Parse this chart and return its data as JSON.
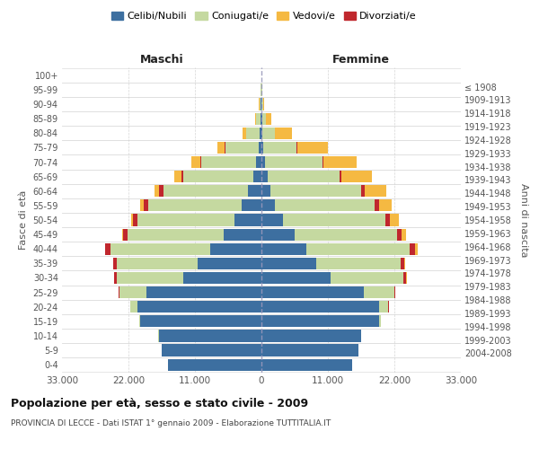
{
  "age_groups": [
    "0-4",
    "5-9",
    "10-14",
    "15-19",
    "20-24",
    "25-29",
    "30-34",
    "35-39",
    "40-44",
    "45-49",
    "50-54",
    "55-59",
    "60-64",
    "65-69",
    "70-74",
    "75-79",
    "80-84",
    "85-89",
    "90-94",
    "95-99",
    "100+"
  ],
  "birth_years": [
    "2004-2008",
    "1999-2003",
    "1994-1998",
    "1989-1993",
    "1984-1988",
    "1979-1983",
    "1974-1978",
    "1969-1973",
    "1964-1968",
    "1959-1963",
    "1954-1958",
    "1949-1953",
    "1944-1948",
    "1939-1943",
    "1934-1938",
    "1929-1933",
    "1924-1928",
    "1919-1923",
    "1914-1918",
    "1909-1913",
    "≤ 1908"
  ],
  "colors": {
    "celibi": "#3d6fa0",
    "coniugati": "#c5d9a0",
    "vedovi": "#f5b942",
    "divorziati": "#c0272d"
  },
  "maschi": {
    "celibi": [
      15500,
      16500,
      17000,
      20000,
      20500,
      19000,
      13000,
      10500,
      8500,
      6200,
      4500,
      3200,
      2200,
      1400,
      900,
      500,
      300,
      150,
      100,
      50,
      20
    ],
    "coniugati": [
      2,
      5,
      30,
      200,
      1200,
      4500,
      11000,
      13500,
      16500,
      16000,
      16000,
      15500,
      14000,
      11500,
      9000,
      5500,
      2200,
      700,
      250,
      80,
      30
    ],
    "vedovi": [
      0,
      0,
      0,
      0,
      2,
      5,
      20,
      50,
      100,
      150,
      300,
      500,
      800,
      1200,
      1500,
      1200,
      600,
      200,
      80,
      20,
      5
    ],
    "divorziati": [
      0,
      0,
      0,
      5,
      30,
      100,
      350,
      500,
      800,
      700,
      800,
      800,
      700,
      350,
      250,
      100,
      30,
      5,
      0,
      0,
      0
    ]
  },
  "femmine": {
    "celibi": [
      15000,
      16000,
      16500,
      19500,
      19500,
      17000,
      11500,
      9000,
      7500,
      5500,
      3500,
      2200,
      1500,
      1000,
      600,
      350,
      200,
      100,
      60,
      30,
      10
    ],
    "coniugati": [
      2,
      5,
      30,
      300,
      1500,
      5000,
      12000,
      14000,
      17000,
      17000,
      17000,
      16500,
      15000,
      12000,
      9500,
      5500,
      2000,
      600,
      200,
      60,
      20
    ],
    "vedovi": [
      0,
      0,
      0,
      0,
      5,
      20,
      80,
      200,
      500,
      800,
      1500,
      2200,
      3500,
      5000,
      5500,
      5000,
      2800,
      900,
      200,
      60,
      15
    ],
    "divorziati": [
      0,
      0,
      0,
      5,
      40,
      120,
      450,
      600,
      900,
      700,
      800,
      700,
      600,
      300,
      200,
      80,
      20,
      5,
      0,
      0,
      0
    ]
  },
  "xlim": 33000,
  "xtick_vals": [
    -33000,
    -22000,
    -11000,
    0,
    11000,
    22000,
    33000
  ],
  "xtick_labels": [
    "33.000",
    "22.000",
    "11.000",
    "0",
    "11.000",
    "22.000",
    "33.000"
  ],
  "title": "Popolazione per età, sesso e stato civile - 2009",
  "subtitle": "PROVINCIA DI LECCE - Dati ISTAT 1° gennaio 2009 - Elaborazione TUTTITALIA.IT",
  "ylabel_left": "Fasce di età",
  "ylabel_right": "Anni di nascita",
  "label_maschi": "Maschi",
  "label_femmine": "Femmine",
  "legend_labels": [
    "Celibi/Nubili",
    "Coniugati/e",
    "Vedovi/e",
    "Divorziati/e"
  ]
}
